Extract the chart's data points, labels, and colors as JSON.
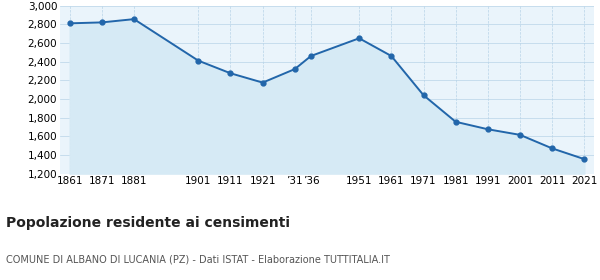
{
  "years": [
    1861,
    1871,
    1881,
    1901,
    1911,
    1921,
    1931,
    1936,
    1951,
    1961,
    1971,
    1981,
    1991,
    2001,
    2011,
    2021
  ],
  "values": [
    2810,
    2820,
    2855,
    2410,
    2275,
    2175,
    2320,
    2460,
    2650,
    2460,
    2040,
    1755,
    1675,
    1615,
    1470,
    1355
  ],
  "x_labels": [
    "1861",
    "1871",
    "1881",
    "1901",
    "1911",
    "1921",
    "’31",
    "’36",
    "1951",
    "1961",
    "1971",
    "1981",
    "1991",
    "2001",
    "2011",
    "2021"
  ],
  "line_color": "#2266aa",
  "fill_color": "#d6eaf5",
  "marker_color": "#2266aa",
  "bg_color": "#eaf4fb",
  "grid_color": "#b8d4e8",
  "title": "Popolazione residente ai censimenti",
  "subtitle": "COMUNE DI ALBANO DI LUCANIA (PZ) - Dati ISTAT - Elaborazione TUTTITALIA.IT",
  "ylim": [
    1200,
    3000
  ],
  "yticks": [
    1200,
    1400,
    1600,
    1800,
    2000,
    2200,
    2400,
    2600,
    2800,
    3000
  ],
  "title_fontsize": 10,
  "subtitle_fontsize": 7,
  "tick_fontsize": 7.5
}
